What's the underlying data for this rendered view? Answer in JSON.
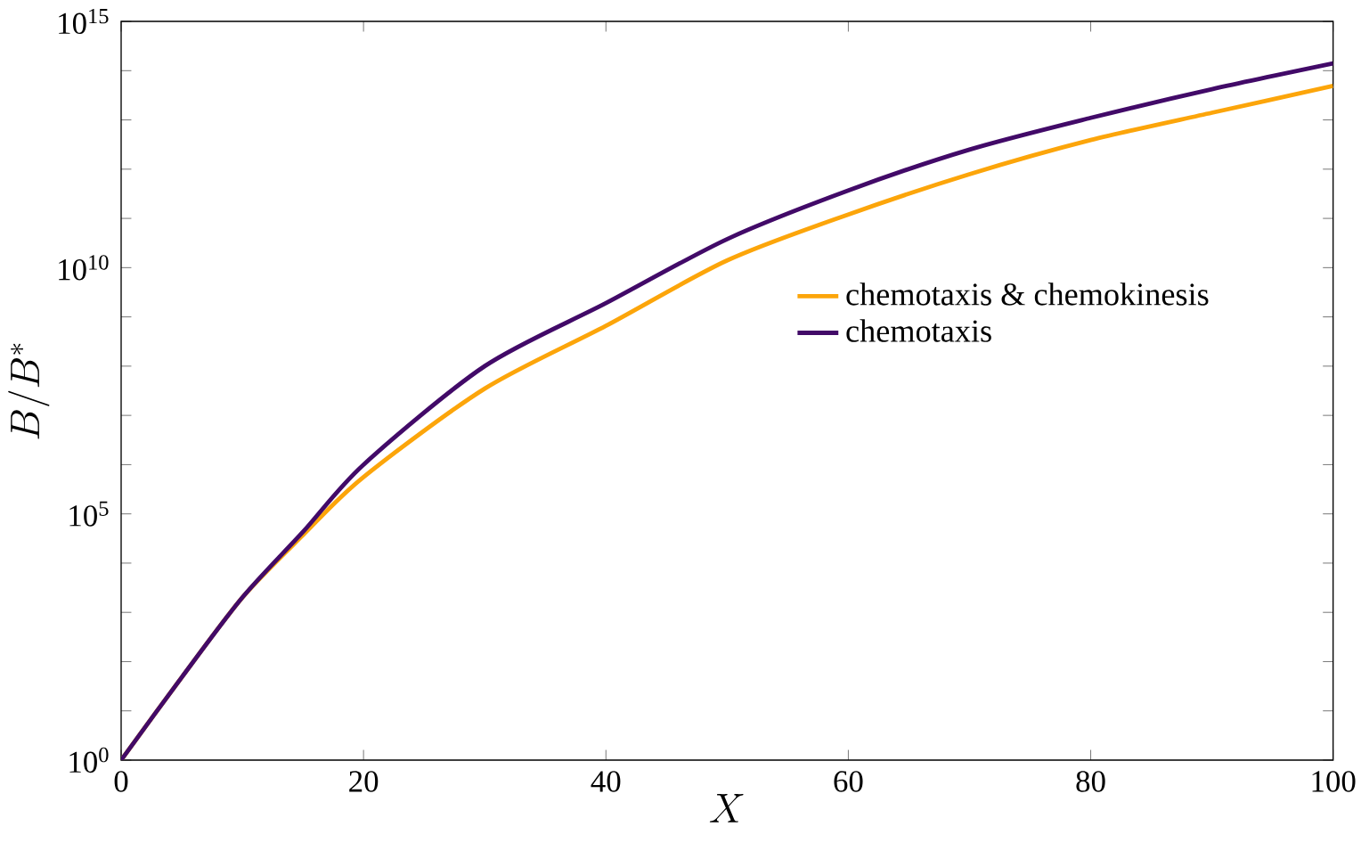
{
  "chart_data": {
    "type": "line",
    "xlabel": "X",
    "ylabel": "B/B^*",
    "x": [
      0,
      5,
      10,
      15,
      20,
      30,
      40,
      50,
      60,
      70,
      80,
      90,
      100
    ],
    "series": [
      {
        "name": "chemotaxis & chemokinesis",
        "color": "#fca50a",
        "values": [
          1,
          48,
          2000.0,
          37000.0,
          560000.0,
          35000000.0,
          660000000.0,
          14000000000.0,
          120000000000.0,
          790000000000.0,
          3900000000000.0,
          14000000000000.0,
          49000000000000.0
        ]
      },
      {
        "name": "chemotaxis",
        "color": "#420a68",
        "values": [
          1,
          48,
          2000.0,
          43000.0,
          1000000.0,
          100000000.0,
          1900000000.0,
          38000000000.0,
          370000000000.0,
          2500000000000.0,
          11000000000000.0,
          42000000000000.0,
          140000000000000.0
        ]
      }
    ],
    "log": "y",
    "xlim": [
      0,
      100
    ],
    "ylim": [
      1,
      1000000000000000.0
    ],
    "xticks": [
      0,
      20,
      40,
      60,
      80,
      100
    ],
    "yticks": [
      {
        "value": 1,
        "label": "10$^{0}$"
      },
      {
        "value": 10.0,
        "label": null
      },
      {
        "value": 100.0,
        "label": null
      },
      {
        "value": 1000.0,
        "label": null
      },
      {
        "value": 10000.0,
        "label": null
      },
      {
        "value": 100000.0,
        "label": "10$^{5}$"
      },
      {
        "value": 1000000.0,
        "label": null
      },
      {
        "value": 10000000.0,
        "label": null
      },
      {
        "value": 100000000.0,
        "label": null
      },
      {
        "value": 1000000000.0,
        "label": null
      },
      {
        "value": 10000000000.0,
        "label": "10$^{10}$"
      },
      {
        "value": 100000000000.0,
        "label": null
      },
      {
        "value": 1000000000000.0,
        "label": null
      },
      {
        "value": 10000000000000.0,
        "label": null
      },
      {
        "value": 100000000000000.0,
        "label": null
      },
      {
        "value": 1000000000000000.0,
        "label": "10$^{15}$"
      }
    ],
    "legend": "right",
    "grid": false,
    "marker": "none",
    "line_style": "solid"
  }
}
